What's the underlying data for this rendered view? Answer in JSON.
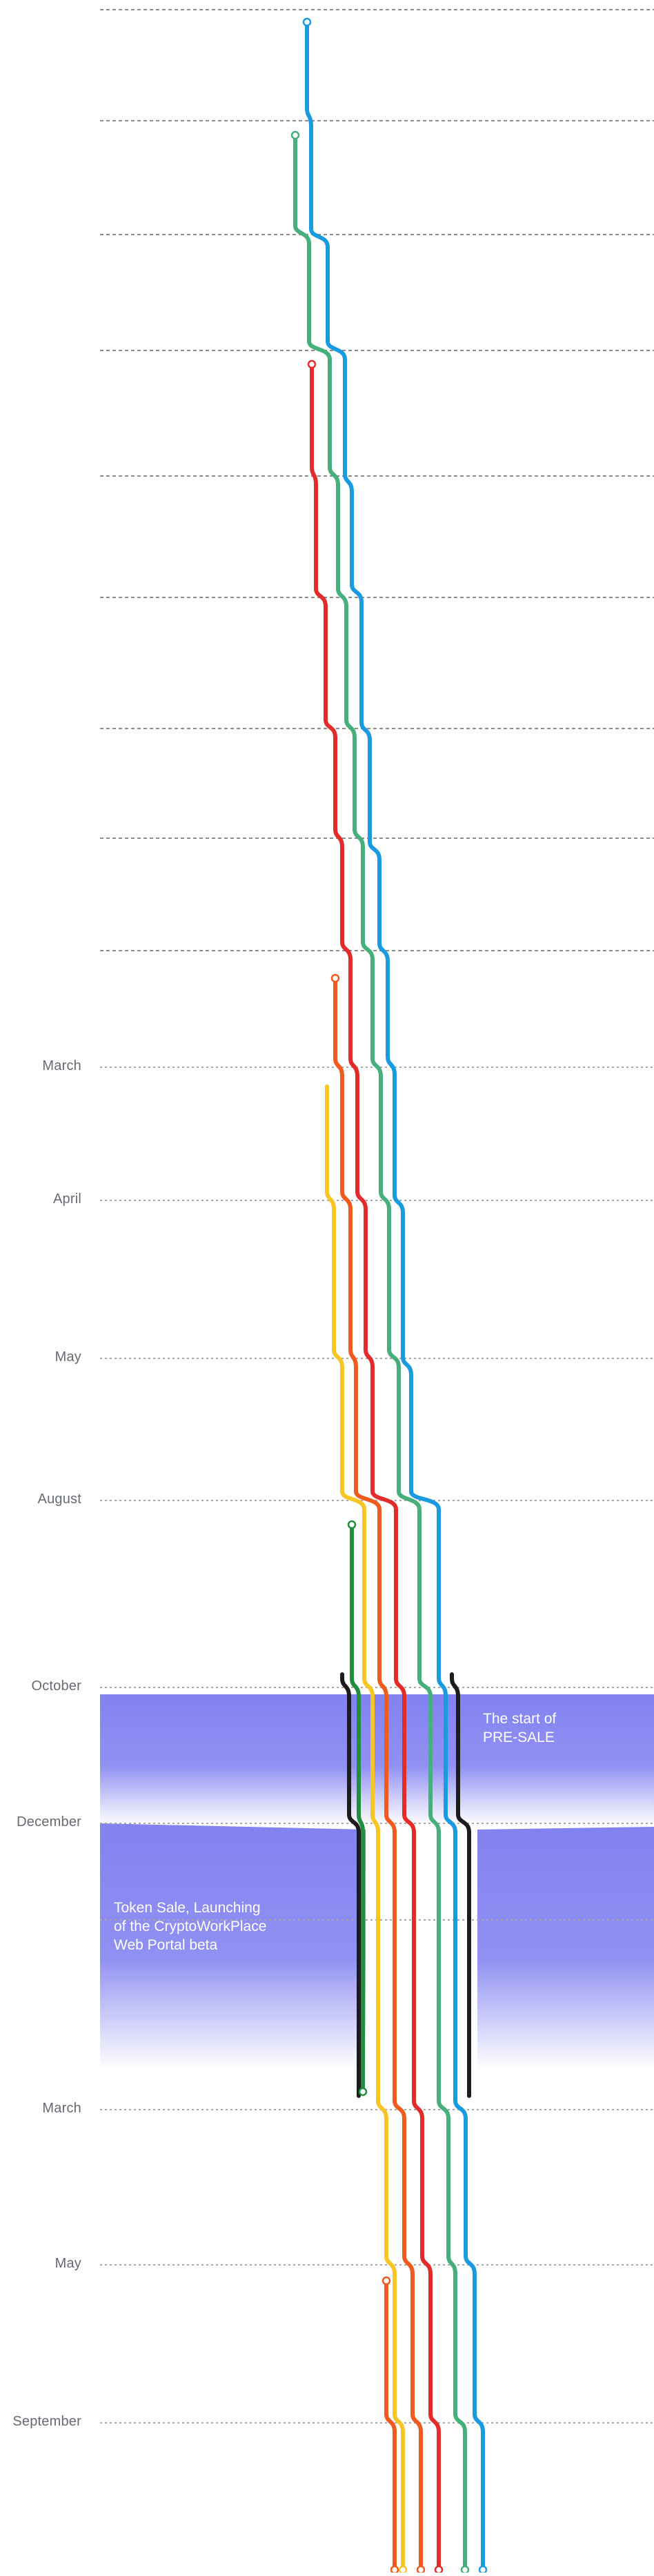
{
  "colors": {
    "blue": "#1a9be0",
    "green": "#45b07c",
    "red": "#e32b2b",
    "orange": "#ef5a1e",
    "yellow": "#f8c526",
    "darkgreen": "#1f8e3d",
    "black": "#1c1c1c",
    "band": "#8282f0",
    "gridline": "#9a9a9a",
    "label": "#666a73"
  },
  "months": [
    "March",
    "April",
    "May",
    "August",
    "October",
    "December",
    "March",
    "May",
    "September"
  ],
  "events": {
    "presale": [
      "The start of",
      "PRE-SALE"
    ],
    "token_sale": [
      "Token Sale, Launching",
      "of the CryptoWorkPlace",
      "Web Portal beta"
    ]
  },
  "lines": [
    "blue",
    "green",
    "red",
    "orange",
    "yellow",
    "darkgreen",
    "black-left",
    "black-right"
  ]
}
